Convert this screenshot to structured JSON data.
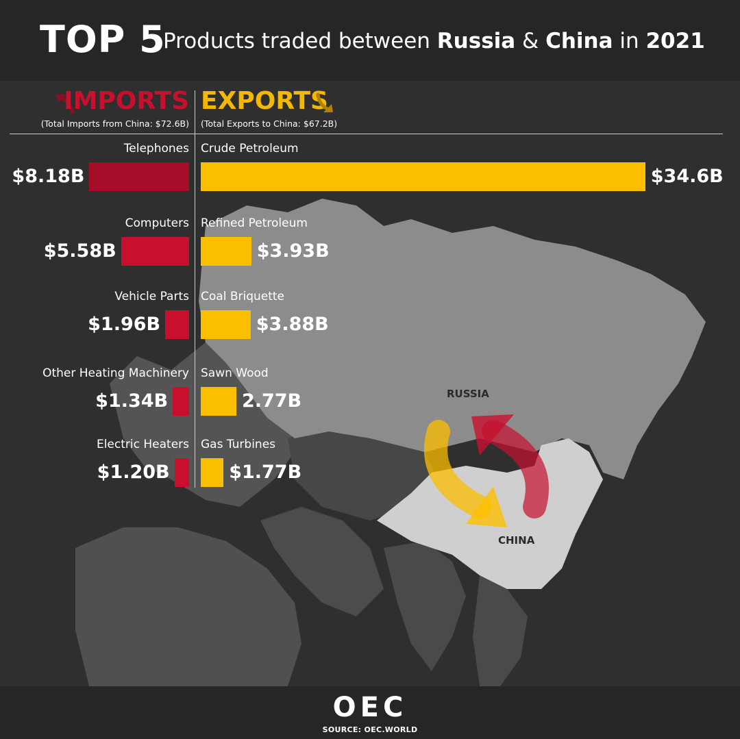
{
  "header": {
    "top": "TOP 5",
    "subtitle_pre": "Products traded between ",
    "subtitle_russia": "Russia",
    "subtitle_amp": " & ",
    "subtitle_china": "China",
    "subtitle_in": " in ",
    "subtitle_year": "2021"
  },
  "imports": {
    "title": "IMPORTS",
    "note": "(Total Imports from China: $72.6B)",
    "color": "#c8102e"
  },
  "exports": {
    "title": "EXPORTS",
    "note": "(Total Exports to China: $67.2B)",
    "color": "#fcbf00"
  },
  "map_labels": {
    "russia": "RUSSIA",
    "china": "CHINA"
  },
  "footer": {
    "logo": "OEC",
    "source": "SOURCE: OEC.WORLD"
  },
  "chart_data": {
    "type": "bar",
    "title": "TOP 5 Products traded between Russia & China in 2021",
    "unit": "USD billions",
    "series": [
      {
        "name": "IMPORTS",
        "categories": [
          "Telephones",
          "Computers",
          "Vehicle Parts",
          "Other Heating Machinery",
          "Electric Heaters"
        ],
        "values": [
          8.18,
          5.58,
          1.96,
          1.34,
          1.2
        ],
        "labels": [
          "$8.18B",
          "$5.58B",
          "$1.96B",
          "$1.34B",
          "$1.20B"
        ]
      },
      {
        "name": "EXPORTS",
        "categories": [
          "Crude Petroleum",
          "Refined Petroleum",
          "Coal Briquette",
          "Sawn Wood",
          "Gas Turbines"
        ],
        "values": [
          34.6,
          3.93,
          3.88,
          2.77,
          1.77
        ],
        "labels": [
          "$34.6B",
          "$3.93B",
          "$3.88B",
          "2.77B",
          "$1.77B"
        ]
      }
    ]
  }
}
